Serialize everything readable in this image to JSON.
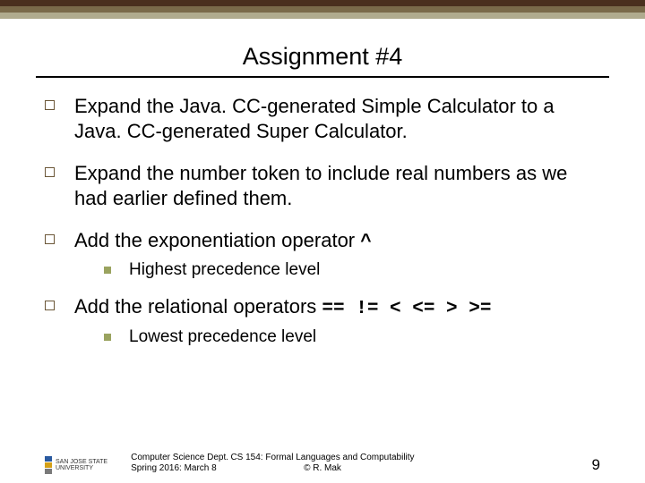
{
  "bands": {
    "c1": "#4a2f1e",
    "c2": "#7a6a4a",
    "c3": "#b0ab8e"
  },
  "title": "Assignment #4",
  "items": [
    {
      "text": "Expand the Java. CC-generated Simple Calculator to a Java. CC-generated Super Calculator."
    },
    {
      "text": "Expand the number token to include real numbers as we had earlier defined them."
    },
    {
      "prefix": "Add the exponentiation operator ",
      "mono": "^",
      "sub": "Highest precedence level"
    },
    {
      "prefix": "Add the relational operators ",
      "mono": "== != < <= > >=",
      "sub": "Lowest precedence level"
    }
  ],
  "footer": {
    "logo_lines": [
      "SAN JOSE STATE",
      "UNIVERSITY"
    ],
    "logo_colors": [
      "#2a5aa0",
      "#d4a017",
      "#7a7a7a"
    ],
    "left_line1": "Computer Science Dept.",
    "left_line2": "Spring 2016: March 8",
    "center_line1": "CS 154: Formal Languages and Computability",
    "center_line2": "© R. Mak",
    "page_num": "9"
  }
}
